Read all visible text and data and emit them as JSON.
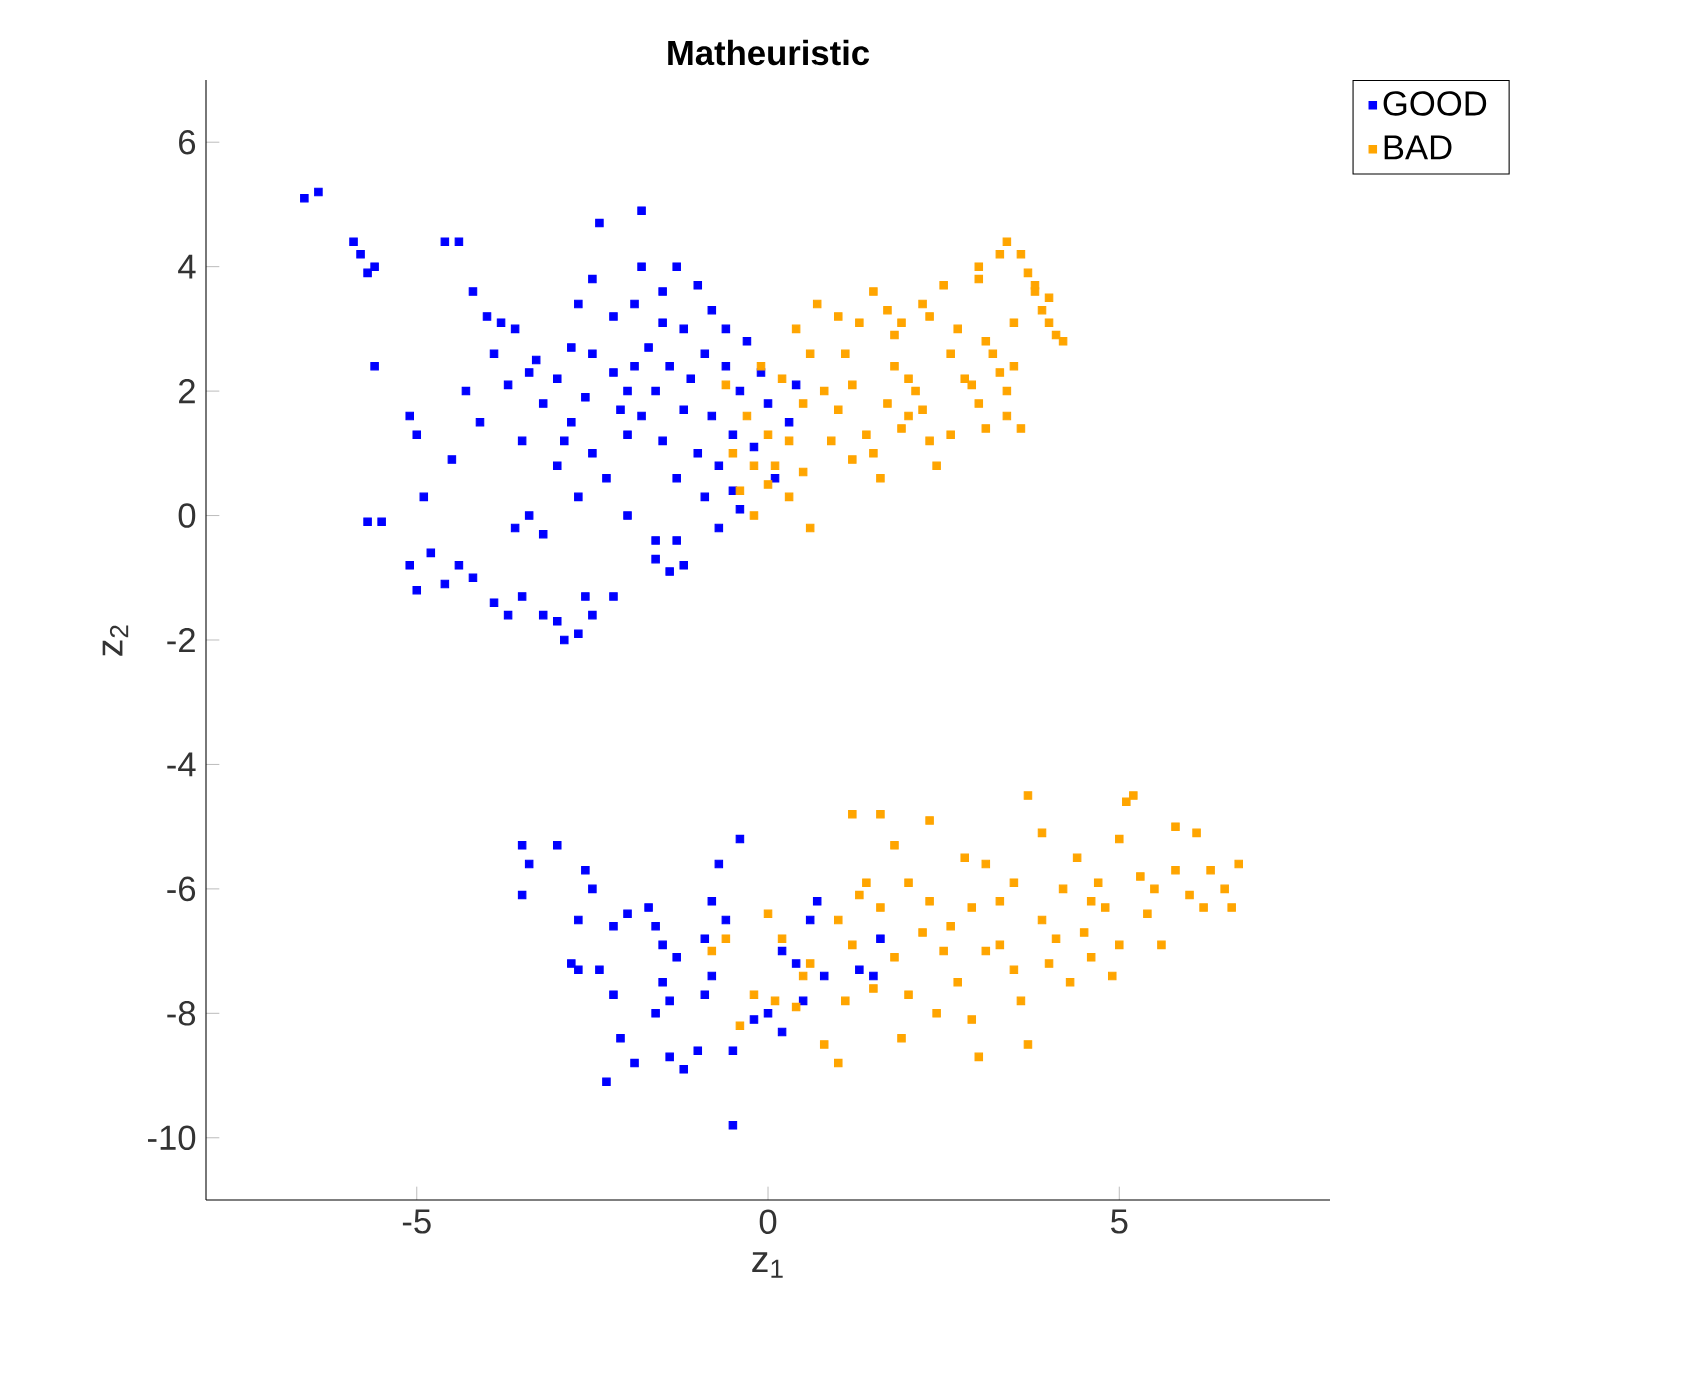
{
  "chart_data": {
    "type": "scatter",
    "title": "**Matheuristic**",
    "xlabel": "z$_{1}$",
    "ylabel": "z$_{2}$",
    "xlim": [
      -8,
      8
    ],
    "ylim": [
      -11,
      7
    ],
    "xticks": [
      -5,
      0,
      5
    ],
    "yticks": [
      -10,
      -8,
      -6,
      -4,
      -2,
      0,
      2,
      4,
      6
    ],
    "legend": "top right",
    "marker": "square",
    "series": [
      {
        "name": "GOOD",
        "color": "#0000ff",
        "x": [
          -6.6,
          -6.4,
          -5.9,
          -5.8,
          -5.7,
          -5.6,
          -4.6,
          -4.4,
          -5.6,
          -5.1,
          -5.0,
          -4.9,
          -5.5,
          -5.7,
          -5.1,
          -4.8,
          -5.0,
          -4.6,
          -4.4,
          -4.2,
          -3.9,
          -3.7,
          -3.5,
          -3.2,
          -3.0,
          -2.9,
          -2.7,
          -2.5,
          -2.6,
          -2.2,
          -3.6,
          -3.4,
          -3.2,
          -1.6,
          -1.4,
          -1.2,
          -1.3,
          -1.6,
          -4.2,
          -4.0,
          -3.8,
          -3.9,
          -4.3,
          -4.1,
          -4.5,
          -3.6,
          -3.3,
          -3.0,
          -3.2,
          -2.8,
          -3.5,
          -3.0,
          -2.5,
          -2.3,
          -2.7,
          -2.0,
          -2.0,
          -2.5,
          -2.2,
          -2.5,
          -2.4,
          -1.8,
          -1.8,
          -1.5,
          -1.3,
          -1.0,
          -0.8,
          -0.6,
          -1.2,
          -1.7,
          -1.4,
          -1.1,
          -0.9,
          -0.6,
          -0.4,
          -1.6,
          -1.2,
          -0.8,
          -0.5,
          -1.5,
          -1.0,
          -0.7,
          -1.3,
          -0.9,
          -0.5,
          -1.8,
          -2.2,
          -2.8,
          -3.4,
          -2.6,
          -2.1,
          -1.9,
          -0.3,
          -0.1,
          0.0,
          -0.2,
          0.1,
          -0.4,
          0.3,
          0.4,
          -2.0,
          -0.7,
          -2.9,
          -3.7,
          -2.7,
          -1.9,
          -1.5,
          -3.5,
          -3.4,
          -3.5,
          -3.0,
          -2.6,
          -2.5,
          -2.7,
          -2.8,
          -2.7,
          -2.4,
          -2.2,
          -2.0,
          -1.7,
          -1.6,
          -1.5,
          -1.3,
          -1.5,
          -1.4,
          -1.6,
          -2.2,
          -2.1,
          -1.9,
          -2.3,
          -1.4,
          -1.2,
          -1.0,
          -0.9,
          -0.8,
          -0.6,
          -0.8,
          -0.7,
          -0.4,
          -0.5,
          -0.2,
          -0.5,
          0.0,
          0.2,
          0.2,
          0.4,
          0.6,
          0.7,
          0.8,
          0.5,
          1.3,
          1.6,
          1.5,
          -0.9
        ],
        "values": [
          5.1,
          5.2,
          4.4,
          4.2,
          3.9,
          4.0,
          4.4,
          4.4,
          2.4,
          1.6,
          1.3,
          0.3,
          -0.1,
          -0.1,
          -0.8,
          -0.6,
          -1.2,
          -1.1,
          -0.8,
          -1.0,
          -1.4,
          -1.6,
          -1.3,
          -1.6,
          -1.7,
          -2.0,
          -1.9,
          -1.6,
          -1.3,
          -1.3,
          -0.2,
          0.0,
          -0.3,
          -0.7,
          -0.9,
          -0.8,
          -0.4,
          -0.4,
          3.6,
          3.2,
          3.1,
          2.6,
          2.0,
          1.5,
          0.9,
          3.0,
          2.5,
          2.2,
          1.8,
          1.5,
          1.2,
          0.8,
          1.0,
          0.6,
          0.3,
          1.3,
          2.0,
          2.6,
          3.2,
          3.8,
          4.7,
          4.9,
          4.0,
          3.6,
          4.0,
          3.7,
          3.3,
          3.0,
          3.0,
          2.7,
          2.4,
          2.2,
          2.6,
          2.4,
          2.0,
          2.0,
          1.7,
          1.6,
          1.3,
          1.2,
          1.0,
          0.8,
          0.6,
          0.3,
          0.4,
          1.6,
          2.3,
          2.7,
          2.3,
          1.9,
          1.7,
          2.4,
          2.8,
          2.3,
          1.8,
          1.1,
          0.6,
          0.1,
          1.5,
          2.1,
          0.0,
          -0.2,
          1.2,
          2.1,
          3.4,
          3.4,
          3.1,
          -5.3,
          -5.6,
          -6.1,
          -5.3,
          -5.7,
          -6.0,
          -6.5,
          -7.2,
          -7.3,
          -7.3,
          -6.6,
          -6.4,
          -6.3,
          -6.6,
          -6.9,
          -7.1,
          -7.5,
          -7.8,
          -8.0,
          -7.7,
          -8.4,
          -8.8,
          -9.1,
          -8.7,
          -8.9,
          -8.6,
          -7.7,
          -7.4,
          -6.5,
          -6.2,
          -5.6,
          -5.2,
          -8.6,
          -8.1,
          -9.8,
          -8.0,
          -8.3,
          -7.0,
          -7.2,
          -6.5,
          -6.2,
          -7.4,
          -7.8,
          -7.3,
          -6.8,
          -7.4,
          -6.8
        ]
      },
      {
        "name": "BAD",
        "color": "#ffa500",
        "x": [
          -0.4,
          -0.2,
          -0.5,
          -0.3,
          -0.1,
          -0.6,
          0.0,
          0.1,
          0.3,
          0.5,
          0.3,
          0.5,
          0.6,
          0.4,
          0.7,
          0.8,
          0.9,
          1.0,
          1.2,
          1.1,
          1.3,
          1.2,
          1.4,
          1.5,
          1.6,
          1.8,
          1.7,
          1.9,
          2.0,
          1.5,
          1.7,
          1.8,
          2.0,
          2.1,
          2.2,
          2.3,
          2.4,
          2.3,
          2.2,
          2.5,
          2.6,
          2.7,
          2.8,
          2.9,
          3.0,
          3.1,
          3.0,
          3.0,
          3.1,
          3.2,
          3.3,
          3.4,
          3.4,
          3.6,
          3.6,
          3.7,
          3.4,
          3.3,
          3.8,
          3.9,
          4.0,
          4.1,
          4.2,
          4.0,
          3.8,
          3.5,
          3.5,
          2.6,
          0.0,
          -0.2,
          0.6,
          1.9,
          1.0,
          0.2,
          -0.8,
          -0.6,
          -0.4,
          -0.2,
          0.0,
          0.2,
          0.1,
          0.4,
          0.6,
          0.8,
          1.0,
          1.1,
          1.2,
          1.3,
          1.4,
          1.2,
          1.6,
          1.8,
          1.6,
          1.8,
          1.9,
          2.0,
          2.2,
          2.3,
          2.3,
          2.5,
          2.6,
          2.7,
          2.9,
          2.9,
          3.1,
          3.3,
          3.3,
          3.1,
          3.5,
          3.7,
          3.5,
          3.6,
          3.7,
          3.9,
          4.0,
          4.2,
          4.3,
          4.4,
          4.5,
          4.7,
          4.8,
          4.9,
          5.0,
          5.1,
          5.2,
          5.3,
          5.4,
          5.5,
          5.8,
          6.0,
          6.1,
          6.3,
          6.5,
          6.7,
          6.6,
          5.6,
          5.8,
          4.6,
          2.0,
          1.0,
          0.5,
          2.8,
          3.9,
          4.1,
          5.0,
          2.4,
          1.5,
          6.2,
          3.0,
          4.6
        ],
        "values": [
          0.4,
          0.0,
          1.0,
          1.6,
          2.4,
          2.1,
          1.3,
          0.8,
          0.3,
          0.7,
          1.2,
          1.8,
          2.6,
          3.0,
          3.4,
          2.0,
          1.2,
          1.7,
          2.1,
          2.6,
          3.1,
          0.9,
          1.3,
          1.0,
          0.6,
          2.4,
          1.8,
          1.4,
          1.6,
          3.6,
          3.3,
          2.9,
          2.2,
          2.0,
          1.7,
          1.2,
          0.8,
          3.2,
          3.4,
          3.7,
          2.6,
          3.0,
          2.2,
          2.1,
          1.8,
          1.4,
          4.0,
          3.8,
          2.8,
          2.6,
          2.3,
          2.0,
          1.6,
          1.4,
          4.2,
          3.9,
          4.4,
          4.2,
          3.6,
          3.3,
          3.1,
          2.9,
          2.8,
          3.5,
          3.7,
          2.4,
          3.1,
          1.3,
          0.5,
          0.8,
          -0.2,
          3.1,
          3.2,
          2.2,
          -7.0,
          -6.8,
          -8.2,
          -7.7,
          -6.4,
          -6.8,
          -7.8,
          -7.9,
          -7.2,
          -8.5,
          -8.8,
          -7.8,
          -6.9,
          -6.1,
          -5.9,
          -4.8,
          -4.8,
          -5.3,
          -6.3,
          -7.1,
          -8.4,
          -7.7,
          -6.7,
          -6.2,
          -4.9,
          -7.0,
          -6.6,
          -7.5,
          -6.3,
          -8.1,
          -7.0,
          -6.2,
          -6.9,
          -5.6,
          -5.9,
          -4.5,
          -7.3,
          -7.8,
          -8.5,
          -6.5,
          -7.2,
          -6.0,
          -7.5,
          -5.5,
          -6.7,
          -5.9,
          -6.3,
          -7.4,
          -5.2,
          -4.6,
          -4.5,
          -5.8,
          -6.4,
          -6.0,
          -5.7,
          -6.1,
          -5.1,
          -5.7,
          -6.0,
          -5.6,
          -6.3,
          -6.9,
          -5.0,
          -7.1,
          -5.9,
          -6.5,
          -7.4,
          -5.5,
          -5.1,
          -6.8,
          -6.9,
          -8.0,
          -7.6,
          -6.3,
          -8.7,
          -6.2
        ]
      }
    ]
  }
}
